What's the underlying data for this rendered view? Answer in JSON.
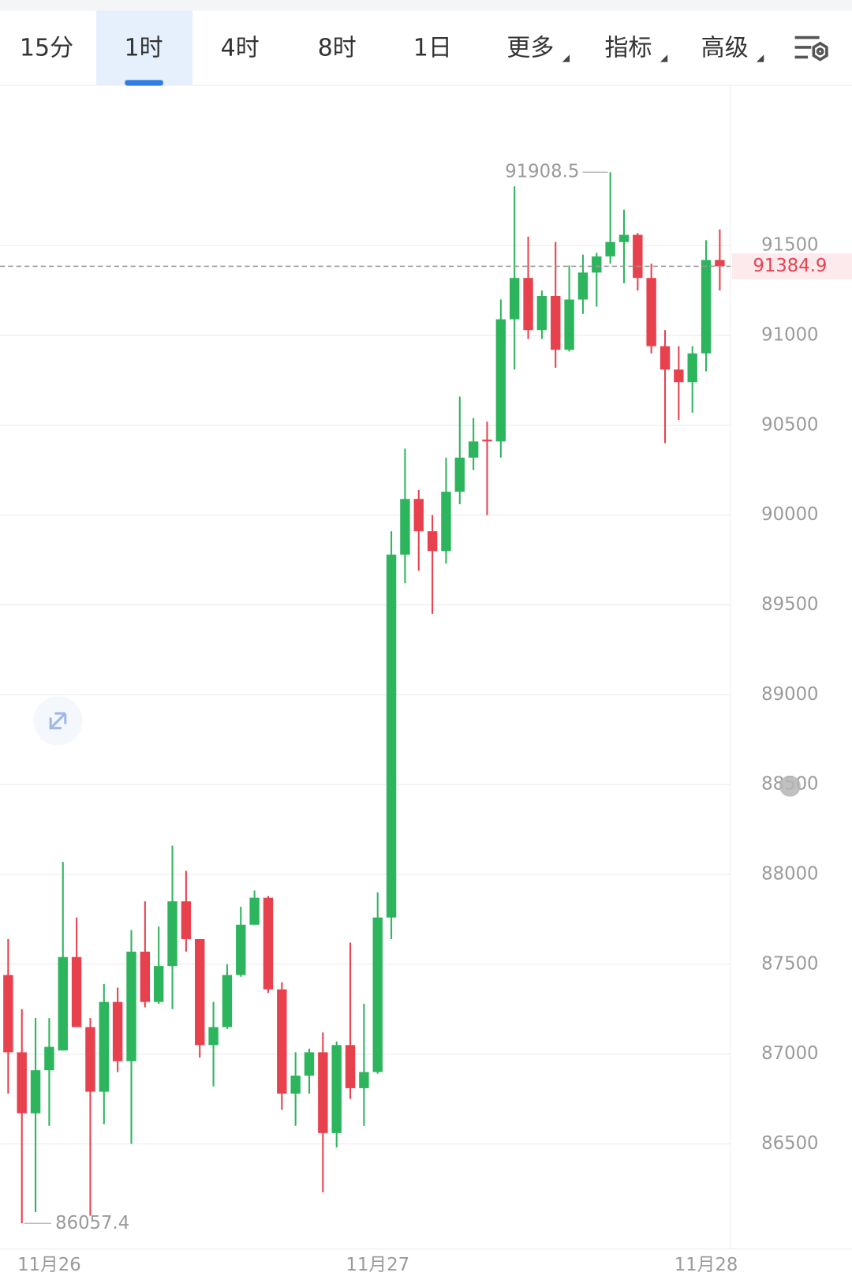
{
  "tabs": [
    "15分",
    "1时",
    "4时",
    "8时",
    "1日",
    "更多",
    "指标",
    "高级"
  ],
  "selected_tab": 1,
  "chart_data": {
    "type": "candlestick",
    "categories": [
      null,
      null,
      null,
      "11月26",
      null,
      null,
      null,
      null,
      null,
      null,
      null,
      null,
      null,
      null,
      null,
      null,
      null,
      null,
      null,
      null,
      null,
      null,
      null,
      null,
      null,
      null,
      null,
      "11月27",
      null,
      null,
      null,
      null,
      null,
      null,
      null,
      null,
      null,
      null,
      null,
      null,
      null,
      null,
      null,
      null,
      null,
      null,
      null,
      null,
      null,
      null,
      null,
      "11月28",
      null
    ],
    "open": [
      87440,
      87010,
      86670,
      86910,
      87020,
      87540,
      87150,
      86790,
      87290,
      86960,
      87570,
      87290,
      87490,
      87850,
      87640,
      87050,
      87150,
      87440,
      87720,
      87870,
      87360,
      86780,
      86880,
      87010,
      86560,
      87050,
      86810,
      86900,
      87760,
      89780,
      90090,
      89910,
      89800,
      90130,
      90320,
      90420,
      90410,
      91090,
      91320,
      91030,
      91220,
      90920,
      91200,
      91350,
      91440,
      91520,
      91560,
      91320,
      90940,
      90810,
      90740,
      90900,
      91420
    ],
    "high": [
      87640,
      87250,
      87200,
      87200,
      88070,
      87760,
      87200,
      87390,
      87370,
      87690,
      87850,
      87710,
      88160,
      88020,
      87640,
      87290,
      87500,
      87820,
      87910,
      87880,
      87400,
      87010,
      87030,
      87120,
      87070,
      87620,
      87280,
      87900,
      89910,
      90370,
      90140,
      90000,
      90320,
      90660,
      90540,
      90520,
      91200,
      91830,
      91550,
      91250,
      91520,
      91390,
      91450,
      91460,
      91908.5,
      91700,
      91570,
      91400,
      91030,
      90940,
      90940,
      91530,
      91590
    ],
    "low": [
      86780,
      86057.4,
      86120,
      86600,
      87020,
      87150,
      86100,
      86610,
      86900,
      86500,
      87260,
      87280,
      87250,
      87570,
      86980,
      86820,
      87140,
      87430,
      87720,
      87340,
      86690,
      86600,
      86780,
      86230,
      86480,
      86750,
      86600,
      86890,
      87640,
      89620,
      89690,
      89450,
      89730,
      90060,
      90250,
      90000,
      90320,
      90810,
      90980,
      90980,
      90820,
      90910,
      91120,
      91160,
      91400,
      91290,
      91250,
      90900,
      90400,
      90530,
      90570,
      90800,
      91250
    ],
    "close": [
      87010,
      86670,
      86910,
      87040,
      87540,
      87150,
      86790,
      87290,
      86960,
      87570,
      87290,
      87490,
      87850,
      87640,
      87050,
      87150,
      87440,
      87720,
      87870,
      87360,
      86780,
      86880,
      87010,
      86560,
      87050,
      86810,
      86900,
      87760,
      89780,
      90090,
      89910,
      89800,
      90130,
      90320,
      90410,
      90410,
      91090,
      91320,
      91030,
      91220,
      90920,
      91200,
      91350,
      91440,
      91520,
      91560,
      91320,
      90940,
      90810,
      90740,
      90900,
      91420,
      91384.9
    ],
    "up_color": "#2db55d",
    "down_color": "#e8414e",
    "ylim": [
      85915,
      92390
    ],
    "yticks": [
      86500,
      87000,
      87500,
      88000,
      88500,
      89000,
      89500,
      90000,
      90500,
      91000,
      91500
    ],
    "grid": true
  }
}
